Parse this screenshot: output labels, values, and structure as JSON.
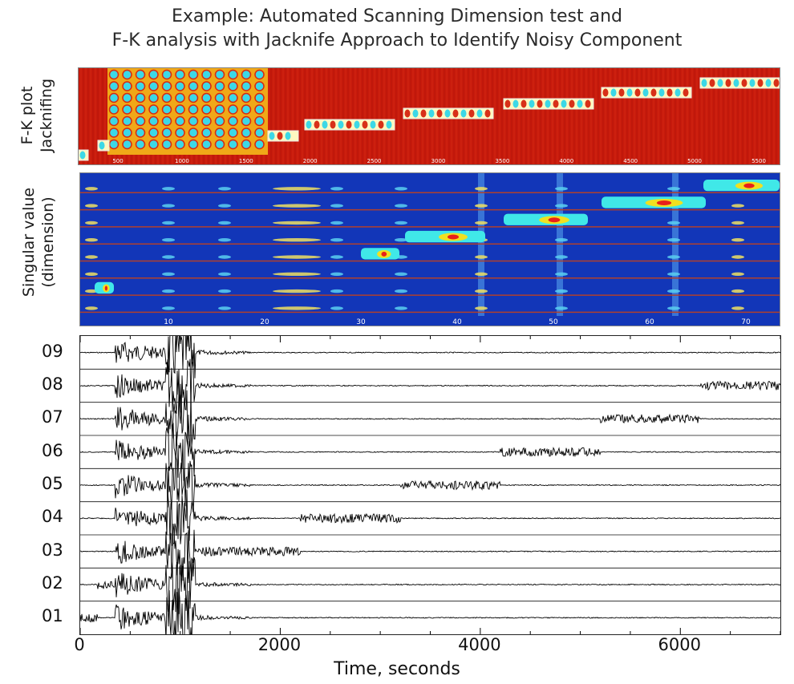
{
  "title_line1": "Example:  Automated Scanning Dimension test and",
  "title_line2": "F-K analysis with Jacknife Approach to Identify Noisy Component",
  "fk_panel": {
    "ylabel_line1": "F-K plot",
    "ylabel_line2": "Jacknifing",
    "xticks": [
      "500",
      "1000",
      "1500",
      "2000",
      "2500",
      "3000",
      "3500",
      "4000",
      "4500",
      "5000",
      "5500"
    ],
    "colors": {
      "background": "#c81a0c",
      "pattern": "#ffd21a",
      "cyan": "#3cd8e6"
    }
  },
  "sv_panel": {
    "ylabel_line1": "Singular value",
    "ylabel_line2": "(dimension)",
    "xticks": [
      "10",
      "20",
      "30",
      "40",
      "50",
      "60",
      "70"
    ],
    "colors": {
      "background": "#1236b8",
      "line": "#b0402c",
      "hot": "#e8201a"
    }
  },
  "chart_data": {
    "type": "line",
    "title": "",
    "xlabel": "Time, seconds",
    "ylabel": "",
    "xlim": [
      0,
      7000
    ],
    "xticks": [
      "0",
      "2000",
      "4000",
      "6000"
    ],
    "channels": [
      "09",
      "08",
      "07",
      "06",
      "05",
      "04",
      "03",
      "02",
      "01"
    ],
    "noisy_segments": [
      {
        "channel": "01",
        "start": 0,
        "end": 170
      },
      {
        "channel": "02",
        "start": 170,
        "end": 350
      },
      {
        "channel": "03",
        "start": 1200,
        "end": 2200
      },
      {
        "channel": "04",
        "start": 2200,
        "end": 3200
      },
      {
        "channel": "05",
        "start": 3200,
        "end": 4200
      },
      {
        "channel": "06",
        "start": 4200,
        "end": 5200
      },
      {
        "channel": "07",
        "start": 5200,
        "end": 6200
      },
      {
        "channel": "08",
        "start": 6200,
        "end": 7000
      }
    ],
    "event_window": {
      "start": 350,
      "end": 1700,
      "peak_start": 850,
      "peak_end": 1150
    }
  }
}
